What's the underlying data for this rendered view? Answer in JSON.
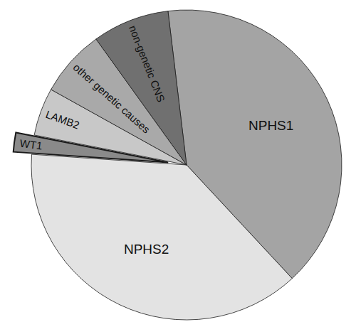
{
  "chart_data": {
    "type": "pie",
    "categories": [
      "NPHS1",
      "NPHS2",
      "WT1",
      "LAMB2",
      "other genetic causes",
      "non-genetic CNS"
    ],
    "values": [
      40,
      38,
      2,
      5,
      7,
      8
    ],
    "colors": [
      "#a4a4a4",
      "#e3e3e3",
      "#8a8a8a",
      "#c8c8c8",
      "#a9a9a9",
      "#707070"
    ]
  }
}
